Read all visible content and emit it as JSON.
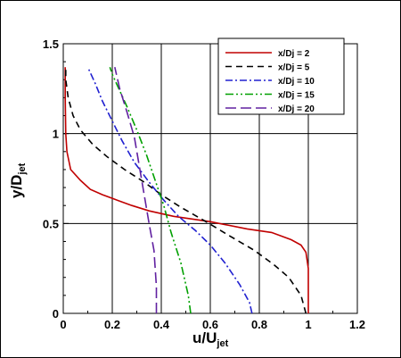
{
  "chart_data": {
    "type": "line",
    "xlabel": {
      "main": "u/U",
      "sub": "jet"
    },
    "ylabel": {
      "main": "y/D",
      "sub": "jet"
    },
    "xlim": [
      0,
      1.2
    ],
    "ylim": [
      0,
      1.5
    ],
    "xticks": [
      "0",
      "0.2",
      "0.4",
      "0.6",
      "0.8",
      "1",
      "1.2"
    ],
    "yticks": [
      "0",
      "0.5",
      "1",
      "1.5"
    ],
    "grid": true,
    "legend_position": "top-right",
    "series": [
      {
        "name": "x/Dj = 2",
        "color": "#c00000",
        "dash": "solid",
        "points": [
          [
            1.0,
            0.0
          ],
          [
            1.0,
            0.25
          ],
          [
            0.99,
            0.34
          ],
          [
            0.97,
            0.38
          ],
          [
            0.93,
            0.41
          ],
          [
            0.85,
            0.45
          ],
          [
            0.75,
            0.47
          ],
          [
            0.6,
            0.51
          ],
          [
            0.45,
            0.54
          ],
          [
            0.35,
            0.57
          ],
          [
            0.28,
            0.6
          ],
          [
            0.22,
            0.63
          ],
          [
            0.16,
            0.66
          ],
          [
            0.11,
            0.69
          ],
          [
            0.07,
            0.74
          ],
          [
            0.03,
            0.8
          ],
          [
            0.015,
            0.9
          ],
          [
            0.01,
            1.0
          ],
          [
            0.008,
            1.2
          ],
          [
            0.008,
            1.37
          ]
        ]
      },
      {
        "name": "x/Dj = 5",
        "color": "#000000",
        "dash": "dashed",
        "points": [
          [
            0.99,
            0.0
          ],
          [
            0.97,
            0.1
          ],
          [
            0.92,
            0.2
          ],
          [
            0.86,
            0.27
          ],
          [
            0.78,
            0.35
          ],
          [
            0.68,
            0.43
          ],
          [
            0.57,
            0.52
          ],
          [
            0.48,
            0.59
          ],
          [
            0.4,
            0.66
          ],
          [
            0.33,
            0.73
          ],
          [
            0.25,
            0.8
          ],
          [
            0.18,
            0.87
          ],
          [
            0.12,
            0.94
          ],
          [
            0.07,
            1.02
          ],
          [
            0.04,
            1.1
          ],
          [
            0.02,
            1.2
          ],
          [
            0.01,
            1.3
          ],
          [
            0.01,
            1.36
          ]
        ]
      },
      {
        "name": "x/Dj = 10",
        "color": "#2020d0",
        "dash": "dashdot",
        "points": [
          [
            0.77,
            0.0
          ],
          [
            0.76,
            0.06
          ],
          [
            0.72,
            0.16
          ],
          [
            0.66,
            0.28
          ],
          [
            0.6,
            0.38
          ],
          [
            0.54,
            0.46
          ],
          [
            0.47,
            0.54
          ],
          [
            0.41,
            0.63
          ],
          [
            0.35,
            0.73
          ],
          [
            0.29,
            0.84
          ],
          [
            0.24,
            0.96
          ],
          [
            0.2,
            1.07
          ],
          [
            0.16,
            1.18
          ],
          [
            0.13,
            1.28
          ],
          [
            0.1,
            1.37
          ]
        ]
      },
      {
        "name": "x/Dj = 15",
        "color": "#00a000",
        "dash": "dashdotdot",
        "points": [
          [
            0.52,
            0.0
          ],
          [
            0.51,
            0.1
          ],
          [
            0.48,
            0.28
          ],
          [
            0.44,
            0.45
          ],
          [
            0.41,
            0.6
          ],
          [
            0.38,
            0.72
          ],
          [
            0.34,
            0.88
          ],
          [
            0.3,
            1.02
          ],
          [
            0.26,
            1.15
          ],
          [
            0.22,
            1.27
          ],
          [
            0.2,
            1.33
          ],
          [
            0.19,
            1.37
          ]
        ]
      },
      {
        "name": "x/Dj = 20",
        "color": "#6020a0",
        "dash": "longdash",
        "points": [
          [
            0.38,
            0.0
          ],
          [
            0.38,
            0.15
          ],
          [
            0.37,
            0.35
          ],
          [
            0.35,
            0.5
          ],
          [
            0.33,
            0.66
          ],
          [
            0.31,
            0.82
          ],
          [
            0.29,
            0.98
          ],
          [
            0.26,
            1.12
          ],
          [
            0.23,
            1.25
          ],
          [
            0.21,
            1.37
          ]
        ]
      }
    ]
  }
}
